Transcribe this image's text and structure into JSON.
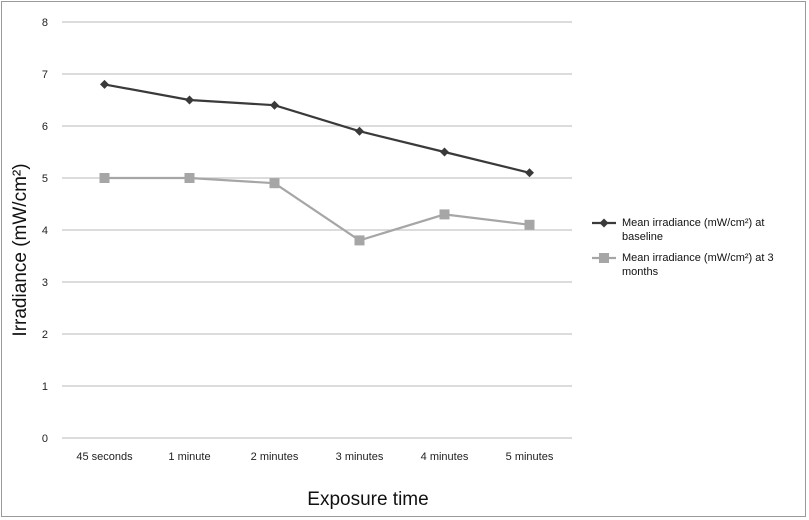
{
  "chart_data": {
    "type": "line",
    "title": "",
    "xlabel": "Exposure time",
    "ylabel": "Irradiance (mW/cm²)",
    "categories": [
      "45 seconds",
      "1 minute",
      "2 minutes",
      "3 minutes",
      "4 minutes",
      "5 minutes"
    ],
    "ylim": [
      0,
      8
    ],
    "yticks": [
      0,
      1,
      2,
      3,
      4,
      5,
      6,
      7,
      8
    ],
    "grid": true,
    "legend_position": "right",
    "series": [
      {
        "name_lines": [
          "Mean irradiance (mW/cm²) at",
          "baseline"
        ],
        "values": [
          6.8,
          6.5,
          6.4,
          5.9,
          5.5,
          5.1
        ],
        "color": "#3a3a3a",
        "marker": "diamond"
      },
      {
        "name_lines": [
          "Mean irradiance (mW/cm²) at 3",
          "months"
        ],
        "values": [
          5.0,
          5.0,
          4.9,
          3.8,
          4.3,
          4.1
        ],
        "color": "#a6a6a6",
        "marker": "square"
      }
    ]
  }
}
